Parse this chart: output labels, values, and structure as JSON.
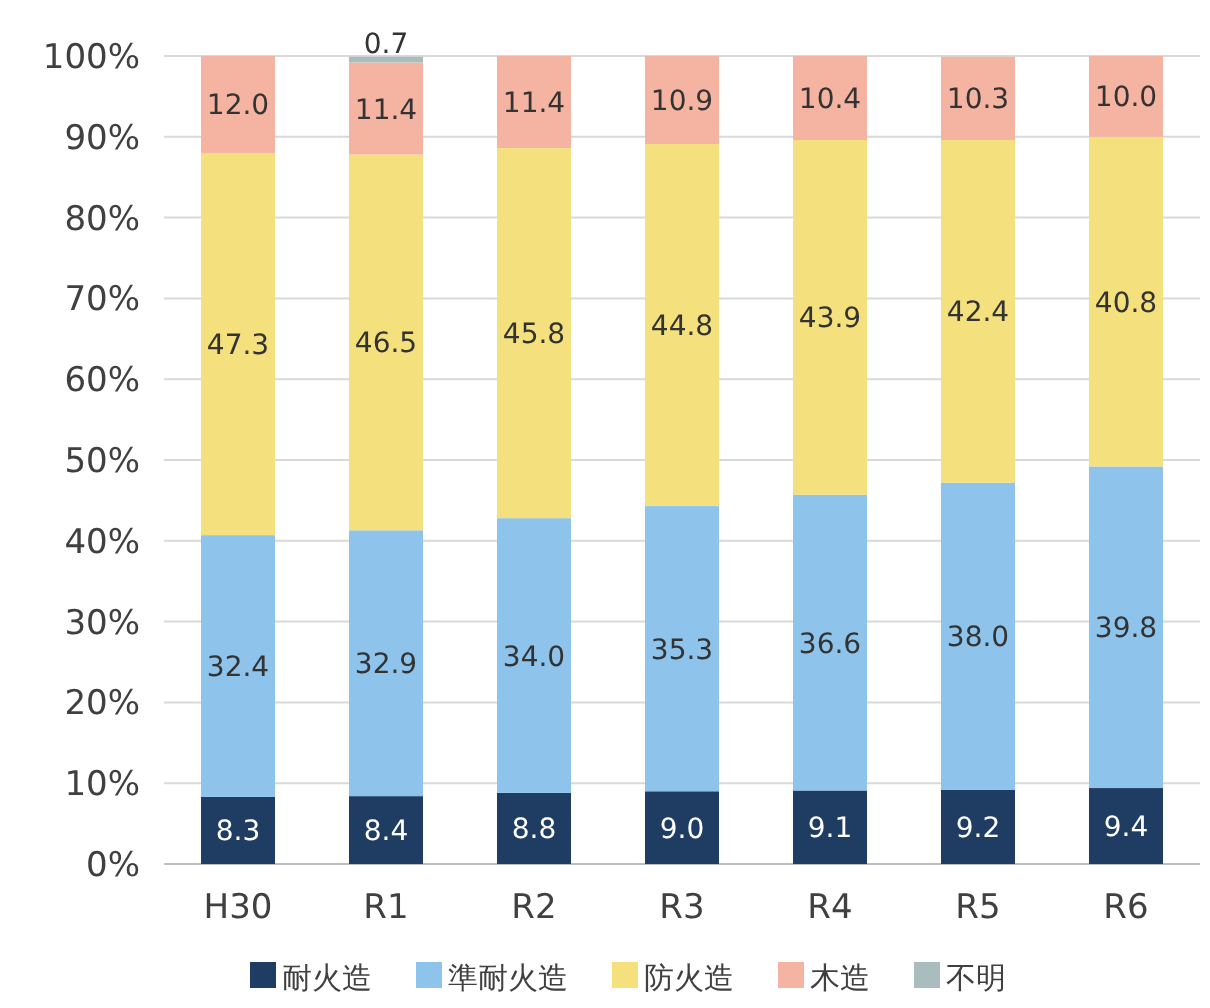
{
  "chart_data": {
    "type": "bar",
    "stacked": true,
    "categories": [
      "H30",
      "R1",
      "R2",
      "R3",
      "R4",
      "R5",
      "R6"
    ],
    "series": [
      {
        "name": "耐火造",
        "color": "#1f3c63",
        "values": [
          8.3,
          8.4,
          8.8,
          9.0,
          9.1,
          9.2,
          9.4
        ],
        "value_labels": [
          "8.3",
          "8.4",
          "8.8",
          "9.0",
          "9.1",
          "9.2",
          "9.4"
        ]
      },
      {
        "name": "準耐火造",
        "color": "#8ec4ec",
        "values": [
          32.4,
          32.9,
          34.0,
          35.3,
          36.6,
          38.0,
          39.8
        ],
        "value_labels": [
          "32.4",
          "32.9",
          "34.0",
          "35.3",
          "36.6",
          "38.0",
          "39.8"
        ]
      },
      {
        "name": "防火造",
        "color": "#f4e07c",
        "values": [
          47.3,
          46.5,
          45.8,
          44.8,
          43.9,
          42.4,
          40.8
        ],
        "value_labels": [
          "47.3",
          "46.5",
          "45.8",
          "44.8",
          "43.9",
          "42.4",
          "40.8"
        ]
      },
      {
        "name": "木造",
        "color": "#f5b4a2",
        "values": [
          12.0,
          11.4,
          11.4,
          10.9,
          10.4,
          10.3,
          10.0
        ],
        "value_labels": [
          "12.0",
          "11.4",
          "11.4",
          "10.9",
          "10.4",
          "10.3",
          "10.0"
        ]
      },
      {
        "name": "不明",
        "color": "#a9bcbe",
        "values": [
          0,
          0.7,
          0,
          0,
          0,
          0,
          0
        ],
        "value_labels": [
          null,
          "0.7",
          null,
          null,
          null,
          null,
          null
        ]
      }
    ],
    "ylim": [
      0,
      100
    ],
    "yticks": [
      {
        "value": 0,
        "label": "0%"
      },
      {
        "value": 10,
        "label": "10%"
      },
      {
        "value": 20,
        "label": "20%"
      },
      {
        "value": 30,
        "label": "30%"
      },
      {
        "value": 40,
        "label": "40%"
      },
      {
        "value": 50,
        "label": "50%"
      },
      {
        "value": 60,
        "label": "60%"
      },
      {
        "value": 70,
        "label": "70%"
      },
      {
        "value": 80,
        "label": "80%"
      },
      {
        "value": 90,
        "label": "90%"
      },
      {
        "value": 100,
        "label": "100%"
      }
    ],
    "grid": "y",
    "legend": "bottom"
  }
}
